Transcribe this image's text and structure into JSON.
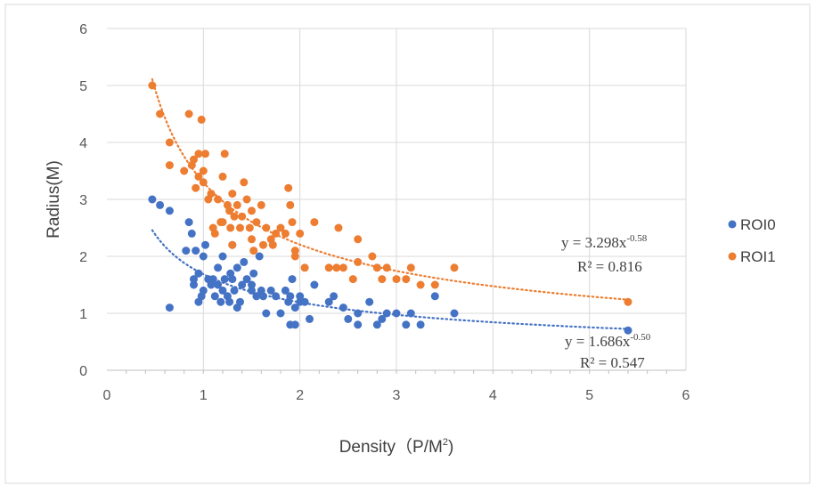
{
  "chart_data": {
    "type": "scatter",
    "xlabel": "Density（P/M",
    "xlabel_sup": "2",
    "xlabel_end": ")",
    "ylabel": "Radius(M)",
    "xlim": [
      0,
      6
    ],
    "ylim": [
      0,
      6
    ],
    "x_ticks": [
      "0",
      "1",
      "2",
      "3",
      "4",
      "5",
      "6"
    ],
    "y_ticks": [
      "0",
      "1",
      "2",
      "3",
      "4",
      "5",
      "6"
    ],
    "grid": true,
    "legend_position": "right",
    "series": [
      {
        "name": "ROI0",
        "color": "#4472C4",
        "points": [
          [
            0.47,
            3.0
          ],
          [
            0.55,
            2.9
          ],
          [
            0.65,
            2.8
          ],
          [
            0.82,
            2.1
          ],
          [
            0.85,
            2.6
          ],
          [
            0.88,
            2.4
          ],
          [
            0.9,
            1.6
          ],
          [
            0.9,
            1.5
          ],
          [
            0.92,
            2.1
          ],
          [
            0.95,
            1.7
          ],
          [
            0.95,
            1.2
          ],
          [
            0.98,
            1.3
          ],
          [
            1.0,
            2.0
          ],
          [
            1.0,
            1.4
          ],
          [
            1.02,
            2.2
          ],
          [
            1.05,
            1.6
          ],
          [
            1.08,
            1.5
          ],
          [
            1.1,
            1.6
          ],
          [
            1.12,
            1.3
          ],
          [
            1.15,
            1.8
          ],
          [
            1.15,
            1.5
          ],
          [
            1.18,
            1.2
          ],
          [
            1.2,
            2.0
          ],
          [
            1.2,
            1.4
          ],
          [
            1.22,
            1.6
          ],
          [
            1.25,
            1.3
          ],
          [
            1.27,
            1.2
          ],
          [
            1.28,
            1.7
          ],
          [
            1.3,
            2.2
          ],
          [
            1.3,
            1.6
          ],
          [
            1.32,
            1.4
          ],
          [
            1.35,
            1.8
          ],
          [
            1.35,
            1.1
          ],
          [
            1.38,
            1.2
          ],
          [
            1.4,
            1.5
          ],
          [
            1.42,
            1.9
          ],
          [
            1.45,
            1.6
          ],
          [
            1.5,
            1.5
          ],
          [
            1.5,
            1.4
          ],
          [
            1.52,
            1.7
          ],
          [
            1.55,
            1.3
          ],
          [
            1.58,
            2.0
          ],
          [
            1.6,
            1.4
          ],
          [
            1.62,
            1.3
          ],
          [
            1.65,
            1.0
          ],
          [
            1.7,
            1.4
          ],
          [
            1.75,
            1.3
          ],
          [
            1.8,
            1.0
          ],
          [
            1.85,
            1.4
          ],
          [
            1.88,
            1.2
          ],
          [
            1.9,
            1.3
          ],
          [
            1.9,
            0.8
          ],
          [
            1.92,
            1.6
          ],
          [
            1.95,
            1.1
          ],
          [
            1.95,
            0.8
          ],
          [
            2.0,
            1.2
          ],
          [
            2.0,
            1.3
          ],
          [
            2.05,
            1.2
          ],
          [
            2.1,
            0.9
          ],
          [
            2.15,
            1.5
          ],
          [
            2.3,
            1.2
          ],
          [
            2.35,
            1.3
          ],
          [
            2.45,
            1.1
          ],
          [
            2.5,
            0.9
          ],
          [
            2.6,
            1.0
          ],
          [
            2.6,
            0.8
          ],
          [
            2.72,
            1.2
          ],
          [
            2.8,
            0.8
          ],
          [
            2.85,
            0.9
          ],
          [
            2.9,
            1.0
          ],
          [
            3.0,
            1.0
          ],
          [
            3.1,
            0.8
          ],
          [
            3.15,
            1.0
          ],
          [
            3.25,
            0.8
          ],
          [
            3.4,
            1.3
          ],
          [
            3.6,
            1.0
          ],
          [
            0.65,
            1.1
          ],
          [
            5.4,
            0.7
          ]
        ],
        "trendline": {
          "type": "power",
          "a": 1.686,
          "b": -0.5,
          "equation_prefix": "y = 1.686x",
          "equation_exp": "-0.50",
          "r2": "R² = 0.547"
        }
      },
      {
        "name": "ROI1",
        "color": "#ED7D31",
        "points": [
          [
            0.47,
            5.0
          ],
          [
            0.55,
            4.5
          ],
          [
            0.65,
            4.0
          ],
          [
            0.65,
            3.6
          ],
          [
            0.8,
            3.5
          ],
          [
            0.85,
            4.5
          ],
          [
            0.88,
            3.6
          ],
          [
            0.9,
            3.7
          ],
          [
            0.92,
            3.2
          ],
          [
            0.95,
            3.8
          ],
          [
            0.95,
            3.4
          ],
          [
            0.98,
            4.4
          ],
          [
            1.0,
            3.5
          ],
          [
            1.0,
            3.3
          ],
          [
            1.02,
            3.8
          ],
          [
            1.05,
            3.0
          ],
          [
            1.08,
            3.1
          ],
          [
            1.1,
            2.5
          ],
          [
            1.12,
            2.4
          ],
          [
            1.15,
            3.0
          ],
          [
            1.18,
            2.6
          ],
          [
            1.2,
            3.4
          ],
          [
            1.2,
            2.6
          ],
          [
            1.22,
            3.8
          ],
          [
            1.25,
            2.9
          ],
          [
            1.27,
            2.8
          ],
          [
            1.28,
            2.5
          ],
          [
            1.3,
            3.1
          ],
          [
            1.3,
            2.2
          ],
          [
            1.32,
            2.7
          ],
          [
            1.35,
            2.9
          ],
          [
            1.38,
            2.5
          ],
          [
            1.4,
            2.7
          ],
          [
            1.42,
            3.3
          ],
          [
            1.45,
            3.0
          ],
          [
            1.48,
            2.5
          ],
          [
            1.5,
            2.8
          ],
          [
            1.5,
            2.3
          ],
          [
            1.52,
            2.1
          ],
          [
            1.55,
            2.6
          ],
          [
            1.6,
            2.9
          ],
          [
            1.62,
            2.2
          ],
          [
            1.65,
            2.5
          ],
          [
            1.7,
            2.3
          ],
          [
            1.72,
            2.2
          ],
          [
            1.75,
            2.4
          ],
          [
            1.8,
            2.5
          ],
          [
            1.85,
            2.4
          ],
          [
            1.88,
            3.2
          ],
          [
            1.9,
            2.9
          ],
          [
            1.92,
            2.6
          ],
          [
            1.95,
            2.1
          ],
          [
            1.95,
            2.0
          ],
          [
            2.0,
            2.4
          ],
          [
            2.05,
            1.8
          ],
          [
            2.15,
            2.6
          ],
          [
            2.3,
            1.8
          ],
          [
            2.38,
            1.8
          ],
          [
            2.4,
            2.5
          ],
          [
            2.45,
            1.8
          ],
          [
            2.55,
            1.6
          ],
          [
            2.6,
            2.3
          ],
          [
            2.6,
            1.9
          ],
          [
            2.75,
            2.0
          ],
          [
            2.8,
            1.8
          ],
          [
            2.85,
            1.6
          ],
          [
            2.9,
            1.8
          ],
          [
            3.0,
            1.6
          ],
          [
            3.1,
            1.6
          ],
          [
            3.15,
            1.8
          ],
          [
            3.25,
            1.5
          ],
          [
            3.4,
            1.5
          ],
          [
            3.6,
            1.8
          ],
          [
            5.4,
            1.2
          ]
        ],
        "trendline": {
          "type": "power",
          "a": 3.298,
          "b": -0.58,
          "equation_prefix": "y = 3.298x",
          "equation_exp": "-0.58",
          "r2": "R² = 0.816"
        }
      }
    ]
  }
}
